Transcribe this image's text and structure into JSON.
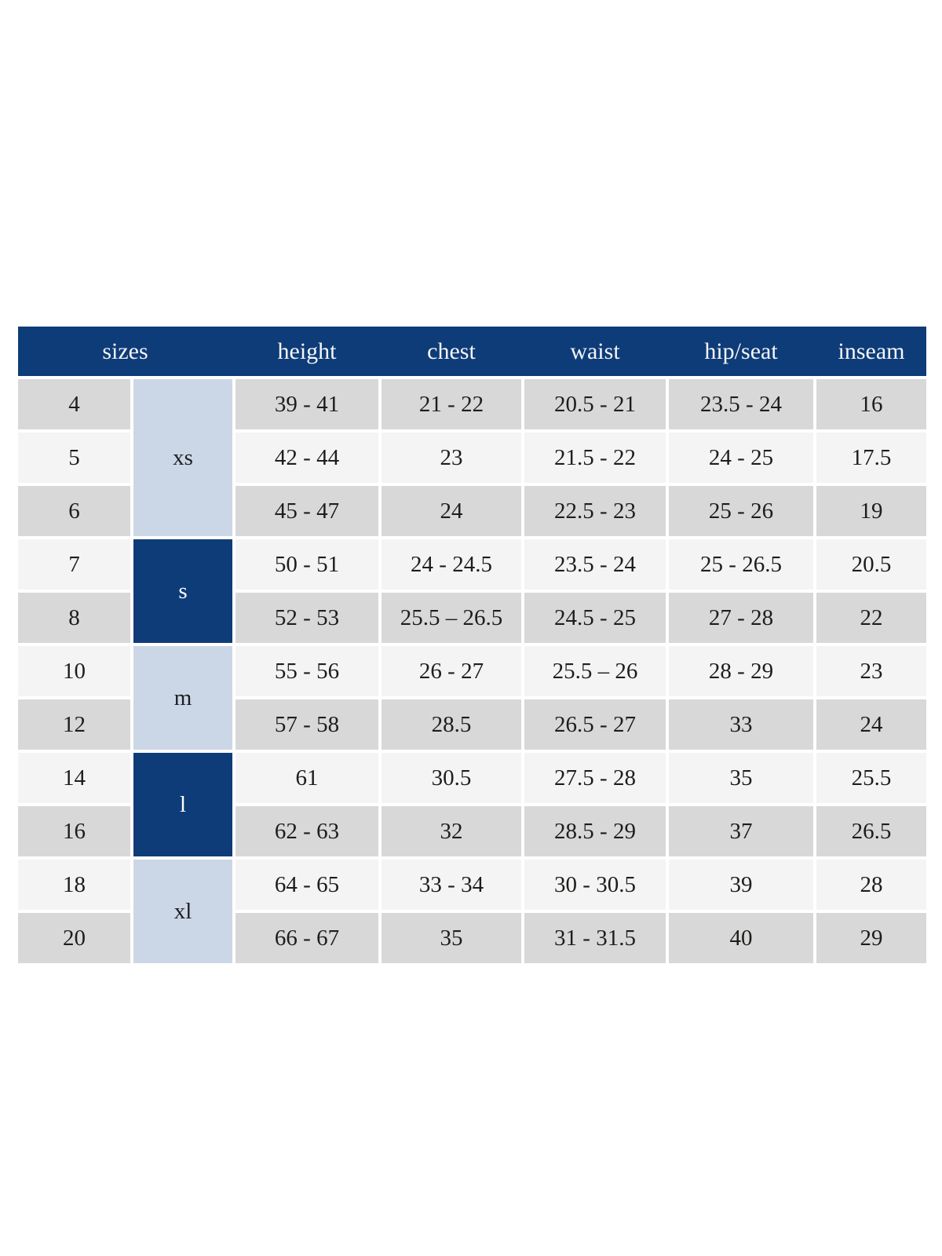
{
  "colors": {
    "header_bg": "#0e3c78",
    "header_text": "#f5f6f8",
    "group_dark_bg": "#0e3c78",
    "group_dark_text": "#ffffff",
    "group_light_bg": "#cbd7e6",
    "group_light_text": "#1c1e22",
    "row_gray": "#d8d8d8",
    "row_light": "#f4f4f4",
    "cell_text": "#1d1d1b",
    "page_bg": "#ffffff"
  },
  "chart_data": {
    "type": "table",
    "title": "",
    "columns": [
      "sizes",
      "height",
      "chest",
      "waist",
      "hip/seat",
      "inseam"
    ],
    "size_groups": [
      {
        "label": "xs",
        "row_span": 3,
        "style": "light"
      },
      {
        "label": "s",
        "row_span": 2,
        "style": "dark"
      },
      {
        "label": "m",
        "row_span": 2,
        "style": "light"
      },
      {
        "label": "l",
        "row_span": 2,
        "style": "dark"
      },
      {
        "label": "xl",
        "row_span": 2,
        "style": "light"
      }
    ],
    "rows": [
      [
        "4",
        "39 - 41",
        "21 - 22",
        "20.5 - 21",
        "23.5 - 24",
        "16"
      ],
      [
        "5",
        "42 - 44",
        "23",
        "21.5 - 22",
        "24 - 25",
        "17.5"
      ],
      [
        "6",
        "45 - 47",
        "24",
        "22.5 - 23",
        "25 - 26",
        "19"
      ],
      [
        "7",
        "50 - 51",
        "24 - 24.5",
        "23.5 - 24",
        "25 - 26.5",
        "20.5"
      ],
      [
        "8",
        "52 - 53",
        "25.5 – 26.5",
        "24.5 - 25",
        "27 - 28",
        "22"
      ],
      [
        "10",
        "55 - 56",
        "26 - 27",
        "25.5 – 26",
        "28 - 29",
        "23"
      ],
      [
        "12",
        "57 - 58",
        "28.5",
        "26.5 - 27",
        "33",
        "24"
      ],
      [
        "14",
        "61",
        "30.5",
        "27.5 - 28",
        "35",
        "25.5"
      ],
      [
        "16",
        "62 - 63",
        "32",
        "28.5 - 29",
        "37",
        "26.5"
      ],
      [
        "18",
        "64 - 65",
        "33 - 34",
        "30 - 30.5",
        "39",
        "28"
      ],
      [
        "20",
        "66 - 67",
        "35",
        "31 - 31.5",
        "40",
        "29"
      ]
    ]
  }
}
